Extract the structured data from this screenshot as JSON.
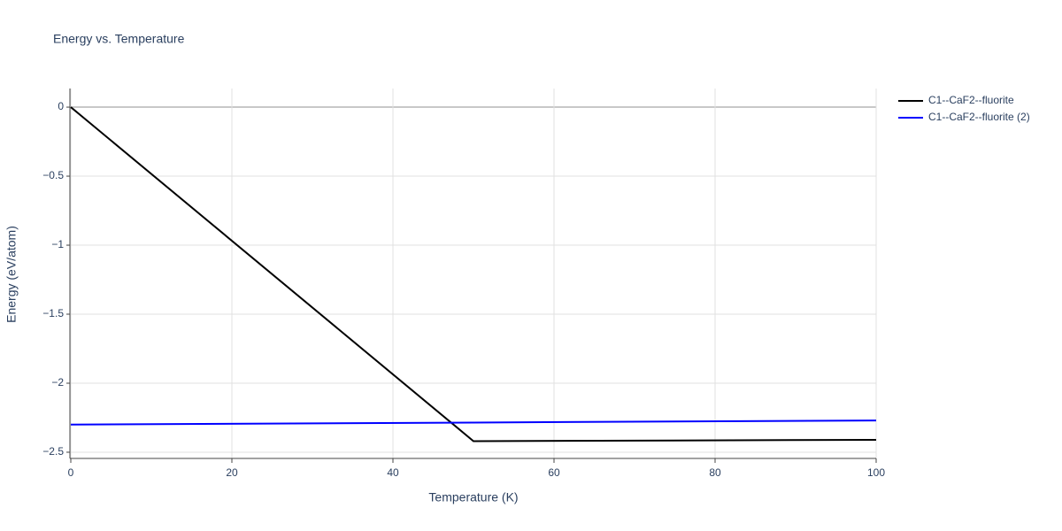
{
  "chart_data": {
    "type": "line",
    "title": "Energy vs. Temperature",
    "x_label": "Temperature (K)",
    "y_label": "Energy (eV/atom)",
    "x": [
      0,
      50,
      100
    ],
    "series": [
      {
        "name": "C1--CaF2--fluorite",
        "color": "#000000",
        "values": [
          0,
          -2.42,
          -2.41
        ]
      },
      {
        "name": "C1--CaF2--fluorite (2)",
        "color": "#0000ff",
        "values": [
          -2.3,
          -2.285,
          -2.27
        ]
      }
    ],
    "xlim": [
      0,
      100
    ],
    "xticks": [
      0,
      20,
      40,
      60,
      80,
      100
    ],
    "ylim": [
      -2.545,
      0.135
    ],
    "yticks": [
      {
        "value": -2.5,
        "label": "−2.5"
      },
      {
        "value": -2,
        "label": "−2"
      },
      {
        "value": -1.5,
        "label": "−1.5"
      },
      {
        "value": -1,
        "label": "−1"
      },
      {
        "value": -0.5,
        "label": "−0.5"
      },
      0
    ],
    "grid": true,
    "legend": "outside-top-right"
  }
}
